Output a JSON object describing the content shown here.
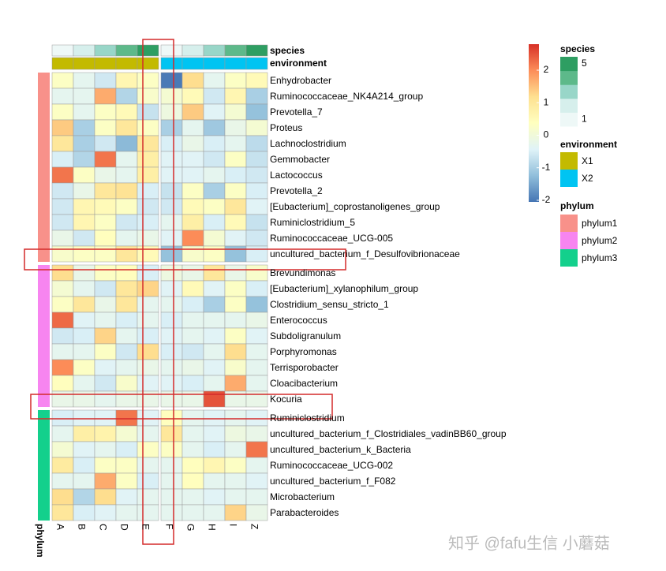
{
  "chart_data": {
    "type": "heatmap",
    "columns": [
      "A",
      "B",
      "C",
      "D",
      "E",
      "F",
      "G",
      "H",
      "I",
      "Z"
    ],
    "rows": [
      "Enhydrobacter",
      "Ruminococcaceae_NK4A214_group",
      "Prevotella_7",
      "Proteus",
      "Lachnoclostridium",
      "Gemmobacter",
      "Lactococcus",
      "Prevotella_2",
      "[Eubacterium]_coprostanoligenes_group",
      "Ruminiclostridium_5",
      "Ruminococcaceae_UCG-005",
      "uncultured_bacterium_f_Desulfovibrionaceae",
      "Brevundimonas",
      "[Eubacterium]_xylanophilum_group",
      "Clostridium_sensu_stricto_1",
      "Enterococcus",
      "Subdoligranulum",
      "Porphyromonas",
      "Terrisporobacter",
      "Cloacibacterium",
      "Kocuria",
      "Ruminiclostridium",
      "uncultured_bacterium_f_Clostridiales_vadinBB60_group",
      "uncultured_bacterium_k_Bacteria",
      "Ruminococcaceae_UCG-002",
      "uncultured_bacterium_f_F082",
      "Microbacterium",
      "Parabacteroides"
    ],
    "values": [
      [
        0.3,
        -0.3,
        -0.6,
        0.6,
        0.3,
        -2,
        1.2,
        -0.3,
        0.3,
        0.5
      ],
      [
        -0.3,
        -0.3,
        1.7,
        -0.9,
        0.2,
        0.1,
        0.5,
        -0.6,
        0.6,
        -1.0
      ],
      [
        0.3,
        -0.3,
        0.3,
        0.5,
        -0.7,
        -0.1,
        1.4,
        -0.4,
        0.1,
        -1.2
      ],
      [
        1.4,
        -1.0,
        0.3,
        1.0,
        0.3,
        -1.0,
        -0.3,
        -1.1,
        -0.2,
        0.1
      ],
      [
        1.0,
        -1.0,
        -0.6,
        -1.3,
        1.0,
        -0.5,
        -0.2,
        -0.5,
        -0.3,
        -0.8
      ],
      [
        -0.5,
        -0.9,
        2.2,
        -0.3,
        0.8,
        -0.4,
        -0.4,
        -0.6,
        0.3,
        -0.7
      ],
      [
        2.2,
        0.3,
        -0.2,
        -0.3,
        0.8,
        -0.4,
        -0.4,
        -0.3,
        -0.5,
        -0.6
      ],
      [
        -0.6,
        -0.2,
        1.0,
        1.1,
        -0.5,
        -0.7,
        0.3,
        -1.0,
        0.3,
        -0.5
      ],
      [
        -0.6,
        0.6,
        0.5,
        0.3,
        -0.6,
        -0.6,
        0.5,
        0.3,
        1.0,
        -0.4
      ],
      [
        -0.6,
        0.6,
        0.3,
        -0.6,
        -0.5,
        -0.3,
        0.8,
        -0.5,
        0.5,
        -0.7
      ],
      [
        -0.2,
        -0.6,
        0.4,
        -0.3,
        -0.2,
        -0.4,
        2.0,
        0.1,
        -0.4,
        -0.6
      ],
      [
        0.2,
        0.3,
        0.3,
        1.0,
        0.5,
        -1.2,
        0.2,
        0.3,
        -1.2,
        -0.5
      ],
      [
        1.2,
        -0.2,
        0.3,
        0.4,
        -0.5,
        -0.1,
        -0.2,
        1.0,
        -0.2,
        0.2
      ],
      [
        0.1,
        -0.3,
        -0.6,
        1.0,
        1.3,
        -0.4,
        0.5,
        -0.4,
        0.3,
        -0.5
      ],
      [
        0.3,
        1.0,
        -0.2,
        1.0,
        -0.3,
        -0.3,
        -0.5,
        -1.0,
        0.3,
        -1.2
      ],
      [
        2.3,
        -0.4,
        -0.3,
        -0.5,
        -0.3,
        -0.5,
        -0.3,
        -0.3,
        -0.3,
        -0.2
      ],
      [
        -0.6,
        -0.5,
        1.3,
        -0.3,
        -0.5,
        -0.4,
        -0.3,
        -0.4,
        0.3,
        -0.4
      ],
      [
        -0.3,
        -0.3,
        0.3,
        -0.6,
        1.2,
        -0.5,
        -0.6,
        -0.3,
        1.2,
        -0.3
      ],
      [
        2.0,
        0.3,
        -0.4,
        -0.3,
        -0.2,
        -0.3,
        -0.2,
        -0.4,
        0.2,
        -0.3
      ],
      [
        0.4,
        -0.3,
        -0.6,
        0.2,
        -0.4,
        -0.4,
        -0.5,
        -0.3,
        1.7,
        -0.3
      ],
      [
        -0.2,
        -0.2,
        -0.3,
        -0.2,
        -0.2,
        -0.2,
        -0.2,
        2.5,
        -0.2,
        -0.2
      ],
      [
        -0.5,
        -0.4,
        -0.4,
        2.2,
        -0.4,
        0.4,
        -0.3,
        -0.4,
        -0.3,
        -0.4
      ],
      [
        -0.3,
        0.8,
        0.7,
        0.1,
        -0.3,
        1.0,
        -0.3,
        -0.4,
        -0.1,
        -0.2
      ],
      [
        0.1,
        -0.4,
        -0.3,
        -0.5,
        0.3,
        0.3,
        -0.3,
        -0.5,
        -0.3,
        2.2
      ],
      [
        0.9,
        -0.5,
        0.3,
        0.3,
        -0.3,
        -0.3,
        0.4,
        0.6,
        0.3,
        -0.3
      ],
      [
        -0.3,
        -0.3,
        1.7,
        0.3,
        -0.5,
        -0.3,
        0.4,
        -0.3,
        -0.3,
        -0.4
      ],
      [
        1.2,
        -0.9,
        1.2,
        -0.4,
        -0.3,
        -0.3,
        -0.3,
        -0.4,
        -0.3,
        -0.3
      ],
      [
        1.0,
        -0.5,
        -0.4,
        -0.3,
        -0.3,
        -0.3,
        -0.3,
        -0.3,
        1.3,
        -0.2
      ]
    ],
    "clim": [
      -2.05,
      2.8
    ],
    "colors": [
      "#4575B4",
      "#91BFDB",
      "#E0F3F8",
      "#FFFFBF",
      "#FEE090",
      "#FC8D59",
      "#D73027"
    ],
    "colorbar_ticks": [
      -2,
      -1,
      0,
      1,
      2
    ],
    "species": {
      "title": "species",
      "values": [
        1,
        2,
        3,
        4,
        5,
        1,
        2,
        3,
        4,
        5
      ],
      "colors": [
        "#EEF8F7",
        "#D6EFEC",
        "#98D6C8",
        "#5DB98A",
        "#2E9E62"
      ],
      "ticks": [
        1,
        5
      ]
    },
    "environment": {
      "title": "environment",
      "values": [
        "X1",
        "X1",
        "X1",
        "X1",
        "X1",
        "X2",
        "X2",
        "X2",
        "X2",
        "X2"
      ],
      "levels": [
        "X1",
        "X2"
      ],
      "colors": [
        "#C3BA00",
        "#00C4F2"
      ]
    },
    "phylum": {
      "title": "phylum",
      "values": [
        "phylum1",
        "phylum1",
        "phylum1",
        "phylum1",
        "phylum1",
        "phylum1",
        "phylum1",
        "phylum1",
        "phylum1",
        "phylum1",
        "phylum1",
        "phylum1",
        "phylum2",
        "phylum2",
        "phylum2",
        "phylum2",
        "phylum2",
        "phylum2",
        "phylum2",
        "phylum2",
        "phylum2",
        "phylum3",
        "phylum3",
        "phylum3",
        "phylum3",
        "phylum3",
        "phylum3",
        "phylum3"
      ],
      "levels": [
        "phylum1",
        "phylum2",
        "phylum3"
      ],
      "colors": [
        "#F8918A",
        "#F785F0",
        "#13D08C"
      ]
    },
    "watermark": "知乎 @fafu生信 小蘑菇"
  }
}
